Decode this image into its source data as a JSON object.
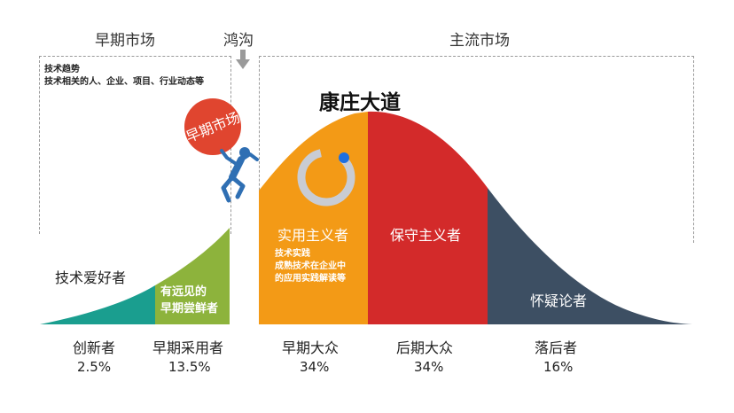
{
  "headers": {
    "early_market": "早期市场",
    "chasm": "鸿沟",
    "main_market": "主流市场"
  },
  "notes": {
    "early_line1": "技术趋势",
    "early_line2": "技术相关的人、企业、项目、行业动态等",
    "main_line1": "技术实践",
    "main_line2": "成熟技术在企业中",
    "main_line3": "的应用实践解读等"
  },
  "highlight_title": "康庄大道",
  "ball_label": "早期市场",
  "segments": [
    {
      "label": "技术爱好者",
      "color": "#1a9e8f"
    },
    {
      "label": "有远见的早期尝鲜者",
      "line1": "有远见的",
      "line2": "早期尝鲜者",
      "color": "#8db33c"
    },
    {
      "label": "实用主义者",
      "color": "#f39a16"
    },
    {
      "label": "保守主义者",
      "color": "#d32a2a"
    },
    {
      "label": "怀疑论者",
      "color": "#3d4f63"
    }
  ],
  "categories": [
    {
      "name": "创新者",
      "pct": "2.5%"
    },
    {
      "name": "早期采用者",
      "pct": "13.5%"
    },
    {
      "name": "早期大众",
      "pct": "34%"
    },
    {
      "name": "后期大众",
      "pct": "34%"
    },
    {
      "name": "落后者",
      "pct": "16%"
    }
  ],
  "colors": {
    "ball": "#e0452f",
    "figure": "#2f6fb3",
    "arrow": "#9a9a9a",
    "logo_ring": "#c9ccd3",
    "logo_dot": "#1e6fe0"
  }
}
